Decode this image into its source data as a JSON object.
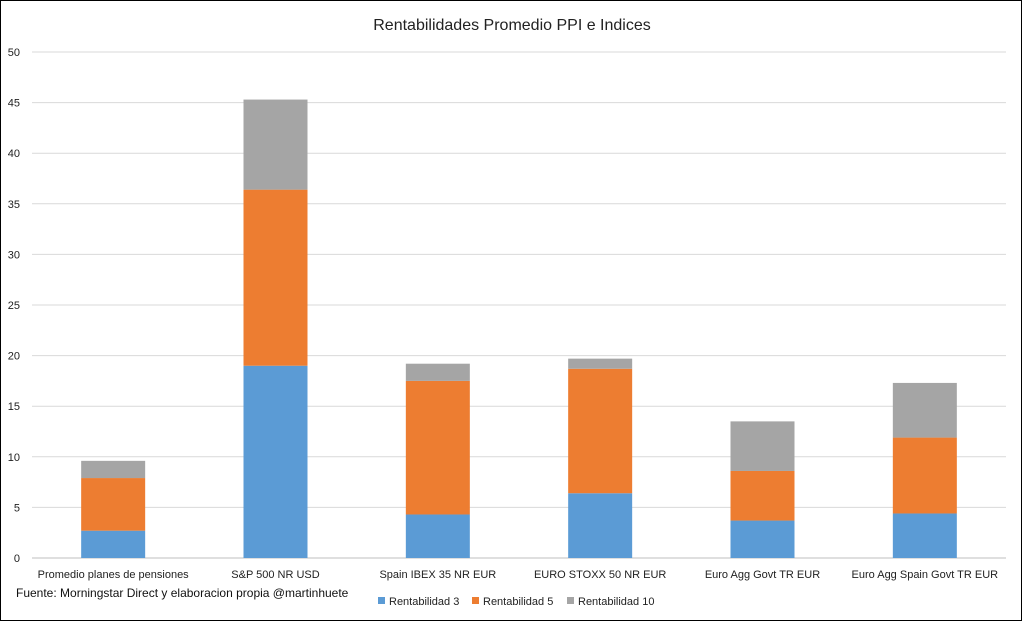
{
  "chart_data": {
    "type": "bar",
    "stacked": true,
    "title": "Rentabilidades Promedio PPI e Indices",
    "xlabel": "",
    "ylabel": "",
    "ylim": [
      0,
      50
    ],
    "yticks": [
      0,
      5,
      10,
      15,
      20,
      25,
      30,
      35,
      40,
      45,
      50
    ],
    "grid": true,
    "legend_position": "bottom-right",
    "categories": [
      "Promedio planes de pensiones",
      "S&P 500 NR USD",
      "Spain IBEX 35 NR EUR",
      "EURO STOXX 50 NR EUR",
      "Euro Agg Govt TR EUR",
      "Euro Agg Spain Govt TR EUR"
    ],
    "series": [
      {
        "name": "Rentabilidad 3",
        "color": "#5B9BD5",
        "values": [
          2.7,
          19.0,
          4.3,
          6.4,
          3.7,
          4.4
        ]
      },
      {
        "name": "Rentabilidad 5",
        "color": "#ED7D31",
        "values": [
          5.2,
          17.4,
          13.2,
          12.3,
          4.9,
          7.5
        ]
      },
      {
        "name": "Rentabilidad 10",
        "color": "#A5A5A5",
        "values": [
          1.7,
          8.9,
          1.7,
          1.0,
          4.9,
          5.4
        ]
      }
    ]
  },
  "footnote": "Fuente: Morningstar Direct y elaboracion propia @martinhuete"
}
